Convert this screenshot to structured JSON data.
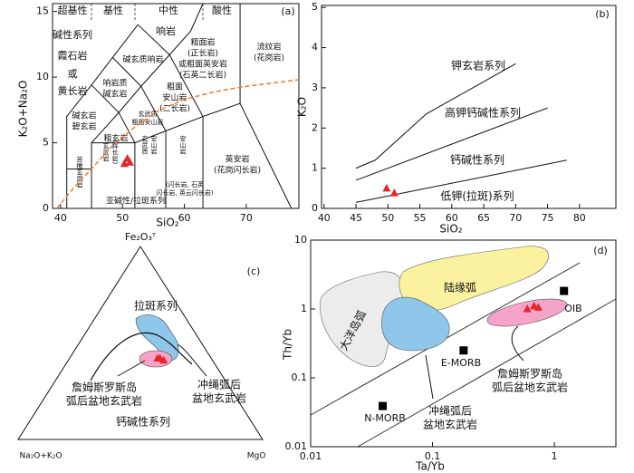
{
  "chart_data": [
    {
      "type": "scatter",
      "panel_label": "(a)",
      "x_label": "SiO₂",
      "y_label": "K₂O+Na₂O",
      "headers": [
        "超基性",
        "基性",
        "中性",
        "酸性"
      ],
      "header_color": "#6a3cc0",
      "series_labels": [
        "碱性系列",
        "亚碱性/拉斑系列"
      ],
      "field_labels": [
        "霞石岩",
        "或",
        "黄长岩",
        "响岩",
        "碱玄质响岩",
        "响岩质",
        "碱玄岩",
        "碱玄岩",
        "碧玄岩",
        "粗玄岩",
        "粗面岩",
        "(正长岩)",
        "或粗面英安岩",
        "(石英二长岩)",
        "粗面",
        "安山岩",
        "(二长岩)",
        "流纹岩",
        "(花岗岩)",
        "英安岩",
        "(花岗闪长岩)",
        "玄武质",
        "粗面安山岩",
        "玄武岩",
        "(辉长岩)",
        "玄武质",
        "安山岩",
        "安山岩",
        "(闪长岩, 石英",
        "闪长岩, 英云闪长岩)",
        "苦橄玄武岩"
      ],
      "xlim": [
        38.7,
        78.5
      ],
      "xticks": [
        40,
        50,
        60,
        70
      ],
      "ylim": [
        0,
        15.6
      ],
      "yticks": [
        0,
        5,
        10,
        15
      ],
      "boundaries": [
        {
          "x": [
            41,
            41,
            45,
            48.4,
            52.5
          ],
          "y": [
            0,
            7,
            9.4,
            11.5,
            14
          ]
        },
        {
          "x": [
            41,
            45
          ],
          "y": [
            3,
            3
          ]
        },
        {
          "x": [
            45,
            45,
            52,
            57,
            63,
            69,
            77.3
          ],
          "y": [
            0,
            5,
            5,
            5.9,
            7,
            8,
            0
          ]
        },
        {
          "x": [
            52,
            52
          ],
          "y": [
            0,
            5
          ]
        },
        {
          "x": [
            57,
            57
          ],
          "y": [
            0,
            5.9
          ]
        },
        {
          "x": [
            63,
            63
          ],
          "y": [
            0,
            7
          ]
        },
        {
          "x": [
            45,
            49.4,
            52
          ],
          "y": [
            5,
            7.3,
            5
          ]
        },
        {
          "x": [
            49.4,
            53,
            57
          ],
          "y": [
            7.3,
            9.3,
            5.9
          ]
        },
        {
          "x": [
            53,
            57.6,
            63
          ],
          "y": [
            9.3,
            11.7,
            7
          ]
        },
        {
          "x": [
            45,
            49.4
          ],
          "y": [
            9.4,
            7.3
          ]
        },
        {
          "x": [
            48.4,
            53
          ],
          "y": [
            11.5,
            9.3
          ]
        },
        {
          "x": [
            52.5,
            57.6
          ],
          "y": [
            14,
            11.7
          ]
        },
        {
          "x": [
            57.6,
            61,
            63
          ],
          "y": [
            11.7,
            13.5,
            15.6
          ]
        },
        {
          "x": [
            69,
            69
          ],
          "y": [
            8,
            15.6
          ]
        }
      ],
      "divider": {
        "color": "#f07b2a",
        "x": [
          39.4,
          42,
          45,
          48,
          52,
          56,
          60,
          65,
          70,
          78.5
        ],
        "y": [
          0,
          1.5,
          3,
          4.6,
          6.2,
          7.5,
          8.3,
          8.9,
          9.3,
          9.8
        ]
      },
      "points": {
        "color": "#e8242a",
        "x": [
          50.3,
          50.8,
          51.2
        ],
        "y": [
          3.4,
          3.8,
          3.5
        ]
      }
    },
    {
      "type": "scatter",
      "panel_label": "(b)",
      "x_label": "SiO₂",
      "y_label": "K₂O",
      "field_labels": [
        "钾玄岩系列",
        "高钾钙碱性系列",
        "钙碱性系列",
        "低钾(拉斑)系列"
      ],
      "xlim": [
        39.6,
        85.7
      ],
      "xticks": [
        40,
        45,
        50,
        55,
        60,
        65,
        70,
        75,
        80
      ],
      "ylim": [
        0,
        5.05
      ],
      "yticks": [
        0,
        1,
        2,
        3,
        4,
        5
      ],
      "boundaries": [
        {
          "x": [
            45,
            48,
            56,
            70
          ],
          "y": [
            1.0,
            1.2,
            2.35,
            3.6
          ]
        },
        {
          "x": [
            45,
            75
          ],
          "y": [
            0.7,
            2.5
          ]
        },
        {
          "x": [
            45,
            78
          ],
          "y": [
            0.15,
            1.2
          ]
        }
      ],
      "points": {
        "color": "#e8242a",
        "x": [
          49.8,
          51.0
        ],
        "y": [
          0.5,
          0.38
        ]
      }
    },
    {
      "type": "ternary",
      "panel_label": "(c)",
      "vertex_labels": [
        "Fe₂O₃ᵀ",
        "Na₂O+K₂O",
        "MgO"
      ],
      "field_labels": [
        "拉斑系列",
        "詹姆斯罗斯岛",
        "弧后盆地玄武岩",
        "冲绳弧后",
        "盆地玄武岩",
        "钙碱性系列"
      ],
      "points": {
        "color": "#e8242a",
        "a": [
          22,
          21,
          20
        ],
        "f": [
          42,
          42,
          41
        ],
        "m": [
          36,
          37,
          39
        ]
      }
    },
    {
      "type": "scatter",
      "panel_label": "(d)",
      "x_label": "Ta/Yb",
      "y_label": "Th/Yb",
      "xscale": "log",
      "yscale": "log",
      "field_labels": [
        "大洋岛弧",
        "陆缘弧",
        "冲绳弧后",
        "盆地玄武岩",
        "詹姆斯罗斯岛",
        "弧后盆地玄武岩"
      ],
      "xlim": [
        0.01,
        3.2
      ],
      "xticks": [
        0.01,
        0.1,
        1
      ],
      "ylim": [
        0.01,
        10
      ],
      "yticks": [
        0.01,
        0.1,
        1,
        10
      ],
      "reference_points": {
        "color": "#000000",
        "names": [
          "OIB",
          "E-MORB",
          "N-MORB"
        ],
        "x": [
          1.2,
          0.18,
          0.039
        ],
        "y": [
          1.83,
          0.25,
          0.039
        ]
      },
      "points": {
        "color": "#e8242a",
        "x": [
          0.6,
          0.68,
          0.74
        ],
        "y": [
          1.0,
          1.1,
          1.05
        ]
      }
    }
  ]
}
